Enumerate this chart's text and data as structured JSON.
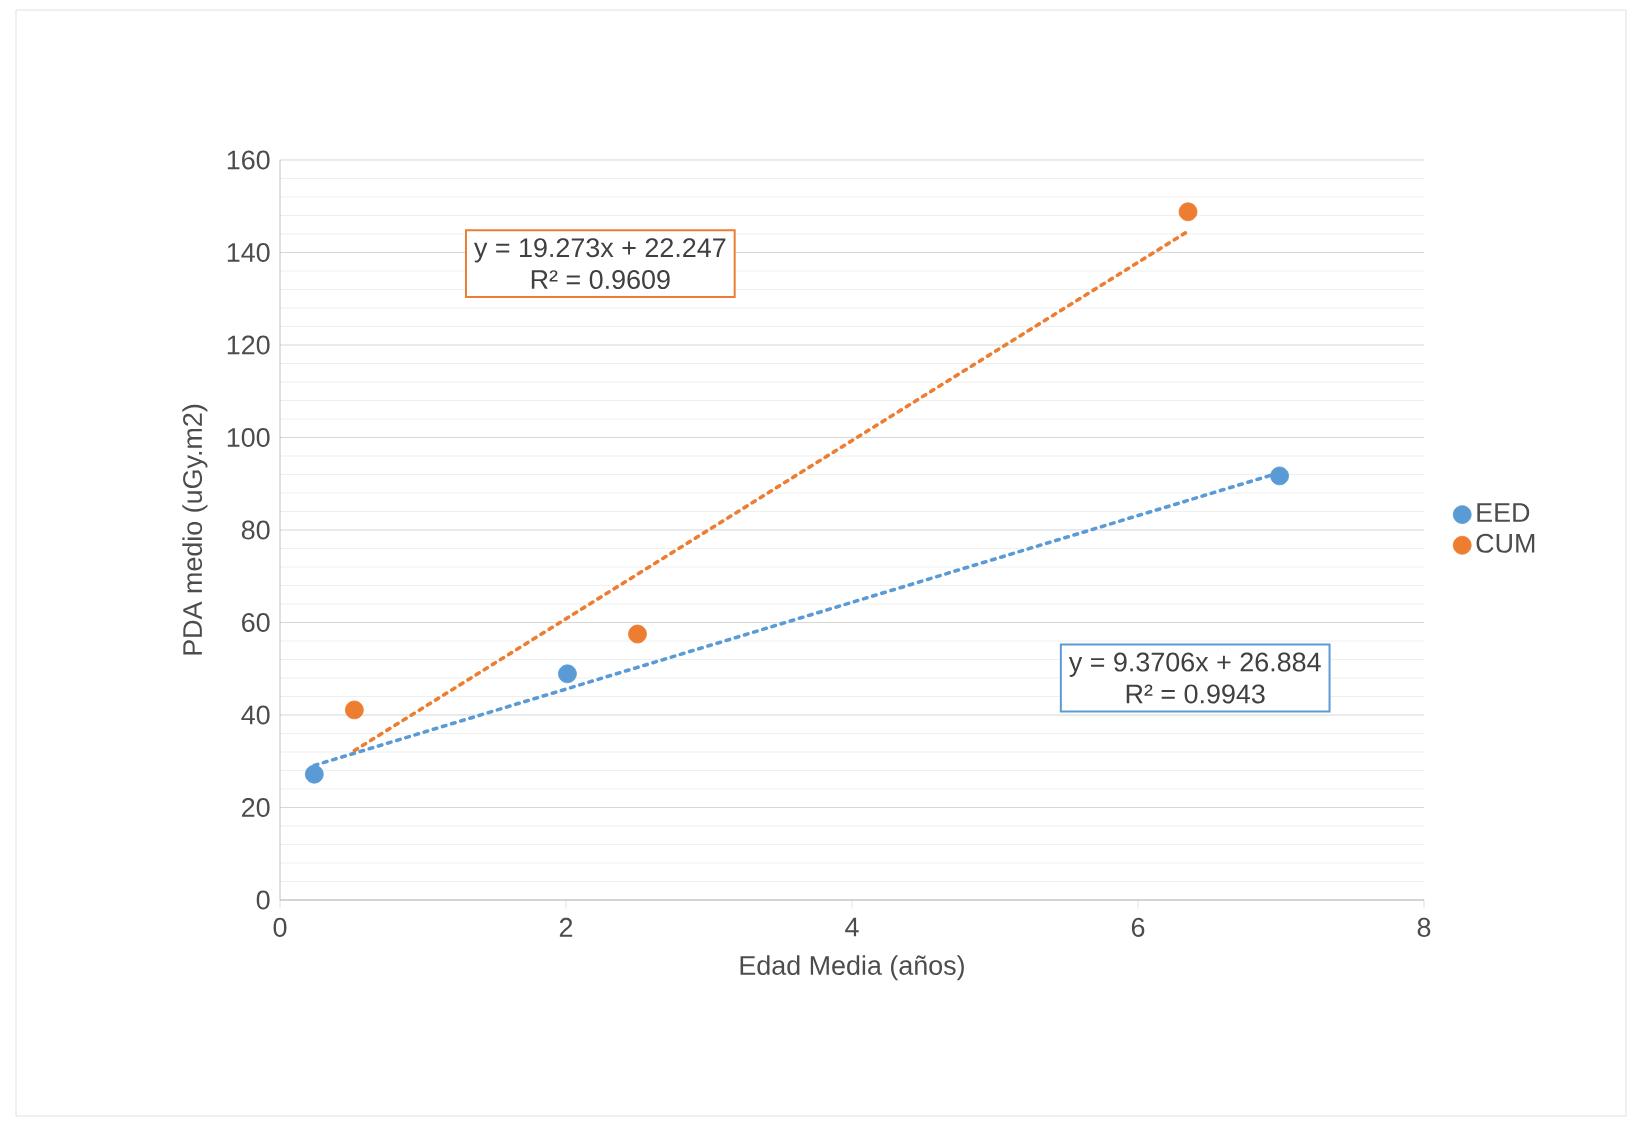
{
  "chart_data": {
    "type": "scatter",
    "xlabel": "Edad Media (años)",
    "ylabel": "PDA medio (uGy.m2)",
    "xlim": [
      0,
      8
    ],
    "xticks": [
      0,
      2,
      4,
      6,
      8
    ],
    "ylim": [
      0,
      160
    ],
    "yticks": [
      0,
      20,
      40,
      60,
      80,
      100,
      120,
      140,
      160
    ],
    "grid": "y",
    "legend": "right",
    "series": [
      {
        "name": "EED",
        "color": "#5b9bd5",
        "marker": "circle",
        "x": [
          0.24,
          2.01,
          6.99
        ],
        "values": [
          27.2,
          48.9,
          91.7
        ]
      },
      {
        "name": "CUM",
        "color": "#ed7d31",
        "marker": "circle",
        "x": [
          0.52,
          2.5,
          6.35
        ],
        "values": [
          41.1,
          57.5,
          148.8
        ]
      },
      {
        "type": "line",
        "color": "#ed7d31",
        "marker": "none",
        "line_style": "dotted",
        "x": [
          0.52,
          6.35
        ],
        "values": [
          32.3,
          144.6
        ]
      },
      {
        "type": "line",
        "color": "#5b9bd5",
        "marker": "none",
        "line_style": "dotted",
        "x": [
          0.24,
          6.99
        ],
        "values": [
          29.1,
          92.4
        ]
      }
    ],
    "annotations": [
      "y = 19.273x + 22.247",
      "R² = 0.9609",
      "y = 9.3706x + 26.884",
      "R² = 0.9943"
    ]
  }
}
